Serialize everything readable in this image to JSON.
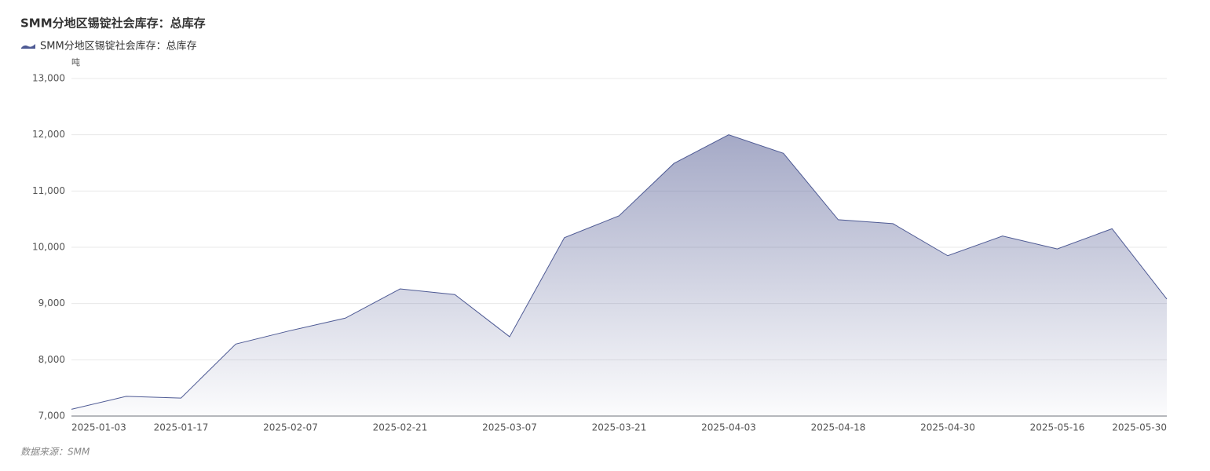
{
  "chart_data": {
    "type": "area",
    "title": "SMM分地区锡锭社会库存：总库存",
    "y_unit": "吨",
    "source": "数据来源：SMM",
    "categories": [
      "2025-01-03",
      null,
      "2025-01-17",
      null,
      "2025-02-07",
      null,
      "2025-02-21",
      null,
      "2025-03-07",
      null,
      "2025-03-21",
      null,
      "2025-04-03",
      null,
      "2025-04-18",
      null,
      "2025-04-30",
      null,
      "2025-05-16",
      null,
      "2025-05-30"
    ],
    "series": [
      {
        "name": "SMM分地区锡锭社会库存：总库存",
        "color": "#4e5a94",
        "values": [
          7120,
          7350,
          7320,
          8280,
          8520,
          8740,
          9260,
          9160,
          8410,
          10170,
          10560,
          11490,
          12000,
          11670,
          10490,
          10420,
          9850,
          10200,
          9970,
          10330,
          9080
        ]
      }
    ],
    "ylim": [
      7000,
      13000
    ],
    "yticks": [
      {
        "value": 7000,
        "label": "7,000"
      },
      {
        "value": 8000,
        "label": "8,000"
      },
      {
        "value": 9000,
        "label": "9,000"
      },
      {
        "value": 10000,
        "label": "10,000"
      },
      {
        "value": 11000,
        "label": "11,000"
      },
      {
        "value": 12000,
        "label": "12,000"
      },
      {
        "value": 13000,
        "label": "13,000"
      }
    ],
    "grid": true
  }
}
